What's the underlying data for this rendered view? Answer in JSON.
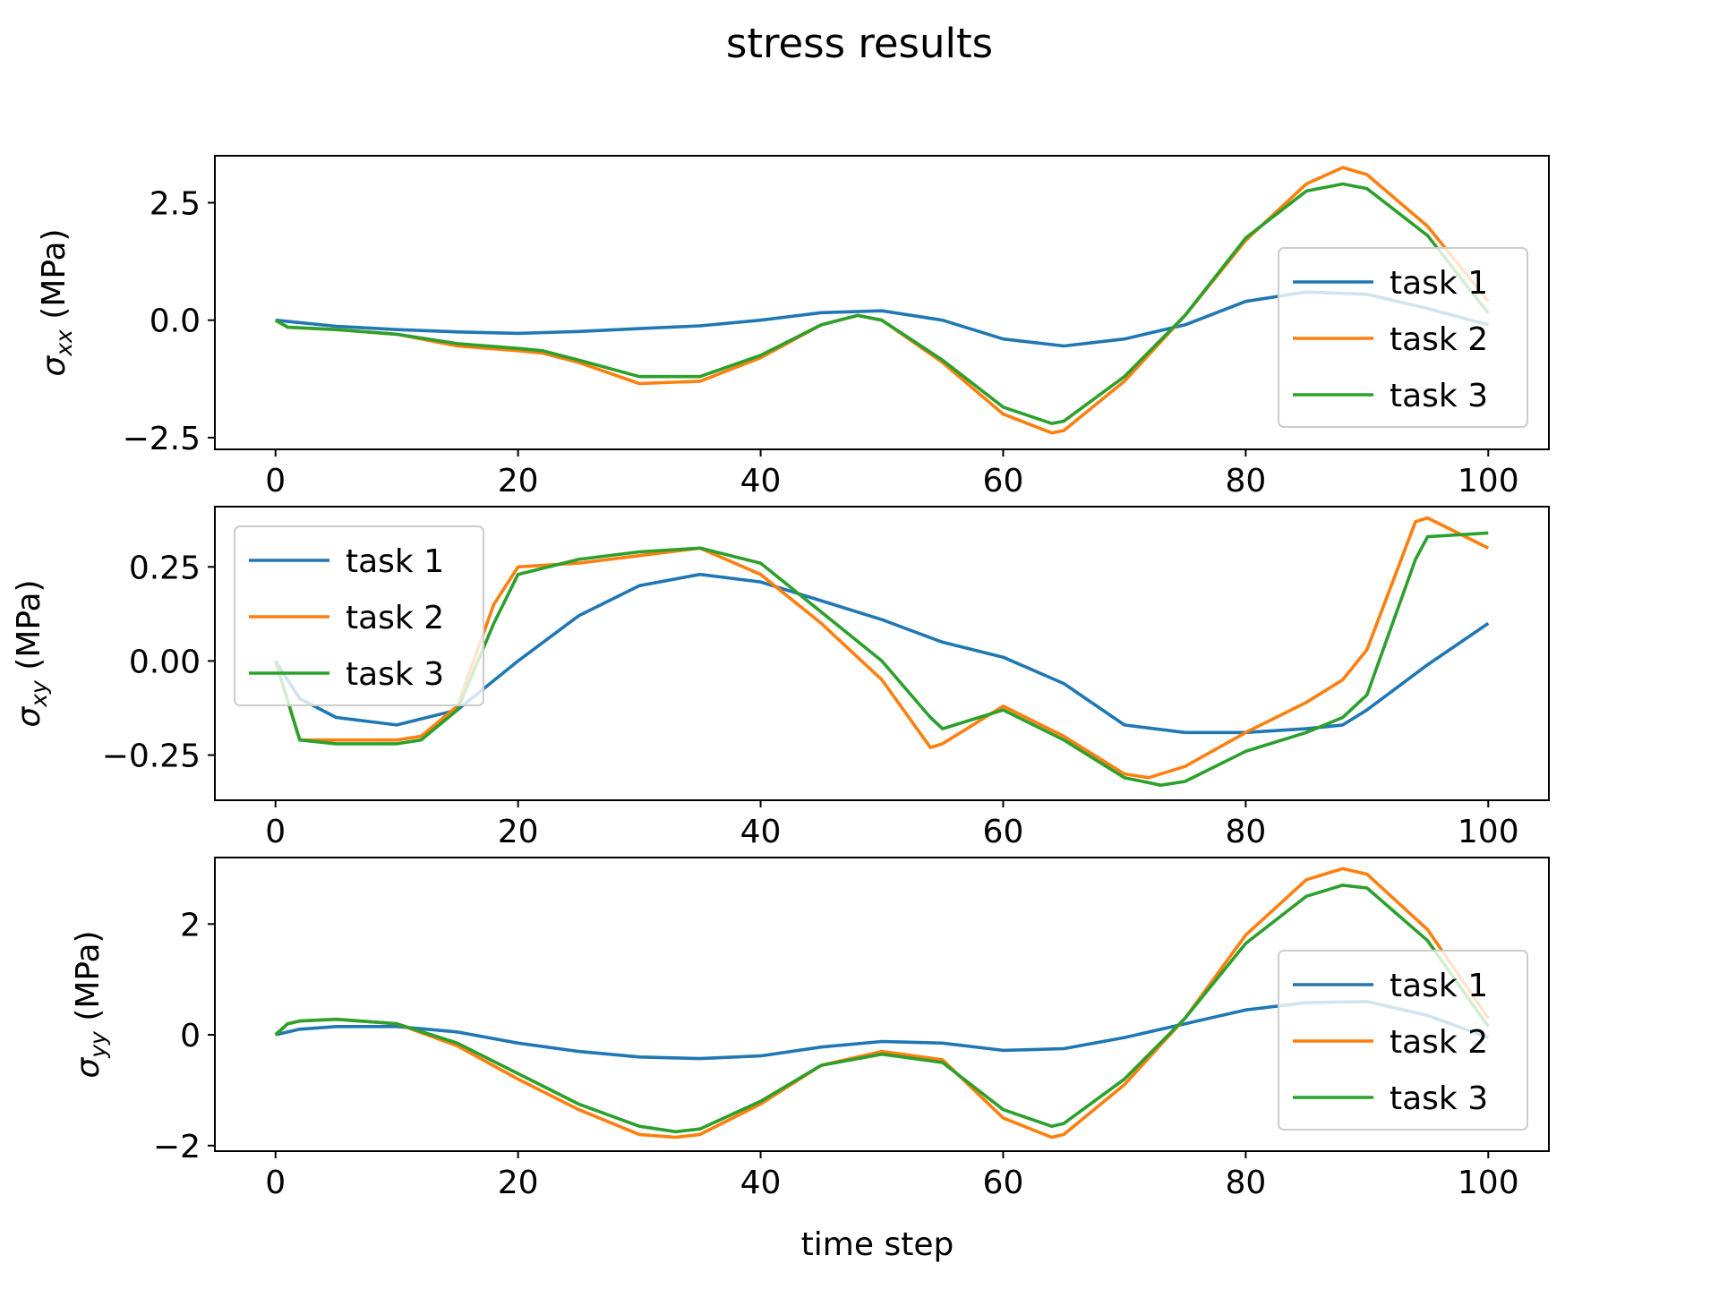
{
  "figure": {
    "title": "stress results",
    "xlabel": "time step"
  },
  "chart_data": [
    {
      "type": "line",
      "ylabel_symbol": "σ",
      "ylabel_sub": "xx",
      "ylabel_unit": " (MPa)",
      "xlim": [
        -5,
        105
      ],
      "ylim": [
        -2.75,
        3.5
      ],
      "x_ticks": [
        0,
        20,
        40,
        60,
        80,
        100
      ],
      "y_ticks": [
        2.5,
        0.0,
        -2.5
      ],
      "y_tick_labels": [
        "2.5",
        "0.0",
        "−2.5"
      ],
      "grid": false,
      "legend_position": "right",
      "series": [
        {
          "name": "task 1",
          "color": "#1f77b4",
          "x": [
            0,
            5,
            10,
            15,
            20,
            25,
            30,
            35,
            40,
            45,
            50,
            55,
            60,
            65,
            70,
            75,
            80,
            85,
            90,
            95,
            100
          ],
          "y": [
            0.0,
            -0.13,
            -0.2,
            -0.25,
            -0.28,
            -0.24,
            -0.18,
            -0.12,
            0.0,
            0.16,
            0.2,
            0.0,
            -0.4,
            -0.55,
            -0.4,
            -0.1,
            0.4,
            0.6,
            0.55,
            0.25,
            -0.1
          ]
        },
        {
          "name": "task 2",
          "color": "#ff7f0e",
          "x": [
            0,
            1,
            5,
            10,
            15,
            20,
            22,
            25,
            30,
            35,
            40,
            45,
            48,
            50,
            55,
            60,
            64,
            65,
            70,
            75,
            80,
            85,
            88,
            90,
            95,
            100
          ],
          "y": [
            0.0,
            -0.15,
            -0.2,
            -0.3,
            -0.55,
            -0.65,
            -0.7,
            -0.9,
            -1.35,
            -1.3,
            -0.8,
            -0.1,
            0.1,
            0.0,
            -0.9,
            -2.0,
            -2.4,
            -2.35,
            -1.3,
            0.1,
            1.7,
            2.9,
            3.25,
            3.1,
            2.0,
            0.4
          ]
        },
        {
          "name": "task 3",
          "color": "#2ca02c",
          "x": [
            0,
            1,
            5,
            10,
            15,
            20,
            22,
            25,
            30,
            35,
            40,
            45,
            48,
            50,
            55,
            60,
            64,
            65,
            70,
            75,
            80,
            85,
            88,
            90,
            95,
            100
          ],
          "y": [
            0.0,
            -0.15,
            -0.2,
            -0.3,
            -0.5,
            -0.6,
            -0.65,
            -0.85,
            -1.2,
            -1.2,
            -0.75,
            -0.1,
            0.1,
            0.0,
            -0.85,
            -1.85,
            -2.2,
            -2.15,
            -1.2,
            0.1,
            1.75,
            2.75,
            2.9,
            2.8,
            1.8,
            0.15
          ]
        }
      ]
    },
    {
      "type": "line",
      "ylabel_symbol": "σ",
      "ylabel_sub": "xy",
      "ylabel_unit": " (MPa)",
      "xlim": [
        -5,
        105
      ],
      "ylim": [
        -0.37,
        0.41
      ],
      "x_ticks": [
        0,
        20,
        40,
        60,
        80,
        100
      ],
      "y_ticks": [
        0.25,
        0.0,
        -0.25
      ],
      "y_tick_labels": [
        "0.25",
        "0.00",
        "−0.25"
      ],
      "grid": false,
      "legend_position": "upper left",
      "series": [
        {
          "name": "task 1",
          "color": "#1f77b4",
          "x": [
            0,
            2,
            5,
            10,
            15,
            20,
            25,
            30,
            35,
            40,
            45,
            50,
            55,
            60,
            65,
            70,
            75,
            80,
            85,
            88,
            90,
            95,
            100
          ],
          "y": [
            0.0,
            -0.1,
            -0.15,
            -0.17,
            -0.13,
            0.0,
            0.12,
            0.2,
            0.23,
            0.21,
            0.16,
            0.11,
            0.05,
            0.01,
            -0.06,
            -0.17,
            -0.19,
            -0.19,
            -0.18,
            -0.17,
            -0.13,
            -0.01,
            0.1
          ]
        },
        {
          "name": "task 2",
          "color": "#ff7f0e",
          "x": [
            0,
            2,
            5,
            10,
            12,
            15,
            18,
            20,
            25,
            30,
            35,
            40,
            45,
            50,
            54,
            55,
            60,
            65,
            70,
            72,
            75,
            80,
            85,
            88,
            90,
            94,
            95,
            100
          ],
          "y": [
            0.0,
            -0.21,
            -0.21,
            -0.21,
            -0.2,
            -0.12,
            0.15,
            0.25,
            0.26,
            0.28,
            0.3,
            0.23,
            0.1,
            -0.05,
            -0.23,
            -0.22,
            -0.12,
            -0.2,
            -0.3,
            -0.31,
            -0.28,
            -0.19,
            -0.11,
            -0.05,
            0.03,
            0.37,
            0.38,
            0.3
          ]
        },
        {
          "name": "task 3",
          "color": "#2ca02c",
          "x": [
            0,
            2,
            5,
            10,
            12,
            15,
            18,
            20,
            25,
            30,
            35,
            40,
            45,
            50,
            54,
            55,
            60,
            65,
            70,
            73,
            75,
            80,
            85,
            88,
            90,
            94,
            95,
            100
          ],
          "y": [
            0.0,
            -0.21,
            -0.22,
            -0.22,
            -0.21,
            -0.13,
            0.1,
            0.23,
            0.27,
            0.29,
            0.3,
            0.26,
            0.13,
            0.0,
            -0.15,
            -0.18,
            -0.13,
            -0.21,
            -0.31,
            -0.33,
            -0.32,
            -0.24,
            -0.19,
            -0.15,
            -0.09,
            0.27,
            0.33,
            0.34
          ]
        }
      ]
    },
    {
      "type": "line",
      "ylabel_symbol": "σ",
      "ylabel_sub": "yy",
      "ylabel_unit": " (MPa)",
      "xlim": [
        -5,
        105
      ],
      "ylim": [
        -2.1,
        3.2
      ],
      "x_ticks": [
        0,
        20,
        40,
        60,
        80,
        100
      ],
      "y_ticks": [
        2,
        0,
        -2
      ],
      "y_tick_labels": [
        "2",
        "0",
        "−2"
      ],
      "grid": false,
      "legend_position": "right",
      "series": [
        {
          "name": "task 1",
          "color": "#1f77b4",
          "x": [
            0,
            2,
            5,
            10,
            15,
            20,
            25,
            30,
            35,
            40,
            45,
            50,
            55,
            60,
            65,
            70,
            75,
            80,
            85,
            90,
            95,
            100
          ],
          "y": [
            0.0,
            0.1,
            0.15,
            0.15,
            0.05,
            -0.15,
            -0.3,
            -0.4,
            -0.43,
            -0.38,
            -0.22,
            -0.12,
            -0.15,
            -0.28,
            -0.25,
            -0.05,
            0.2,
            0.45,
            0.58,
            0.6,
            0.35,
            -0.05
          ]
        },
        {
          "name": "task 2",
          "color": "#ff7f0e",
          "x": [
            0,
            1,
            2,
            5,
            10,
            15,
            20,
            25,
            30,
            33,
            35,
            40,
            45,
            50,
            55,
            60,
            64,
            65,
            70,
            75,
            80,
            85,
            88,
            90,
            95,
            100
          ],
          "y": [
            0.0,
            0.2,
            0.25,
            0.28,
            0.2,
            -0.2,
            -0.8,
            -1.35,
            -1.8,
            -1.85,
            -1.8,
            -1.25,
            -0.55,
            -0.3,
            -0.45,
            -1.5,
            -1.85,
            -1.8,
            -0.9,
            0.3,
            1.8,
            2.8,
            3.0,
            2.9,
            1.9,
            0.3
          ]
        },
        {
          "name": "task 3",
          "color": "#2ca02c",
          "x": [
            0,
            1,
            2,
            5,
            10,
            15,
            20,
            25,
            30,
            33,
            35,
            40,
            45,
            50,
            55,
            60,
            64,
            65,
            70,
            75,
            80,
            85,
            88,
            90,
            95,
            100
          ],
          "y": [
            0.0,
            0.2,
            0.25,
            0.28,
            0.2,
            -0.15,
            -0.7,
            -1.25,
            -1.65,
            -1.75,
            -1.7,
            -1.2,
            -0.55,
            -0.35,
            -0.5,
            -1.35,
            -1.65,
            -1.6,
            -0.8,
            0.3,
            1.65,
            2.5,
            2.7,
            2.65,
            1.7,
            0.15
          ]
        }
      ]
    }
  ]
}
